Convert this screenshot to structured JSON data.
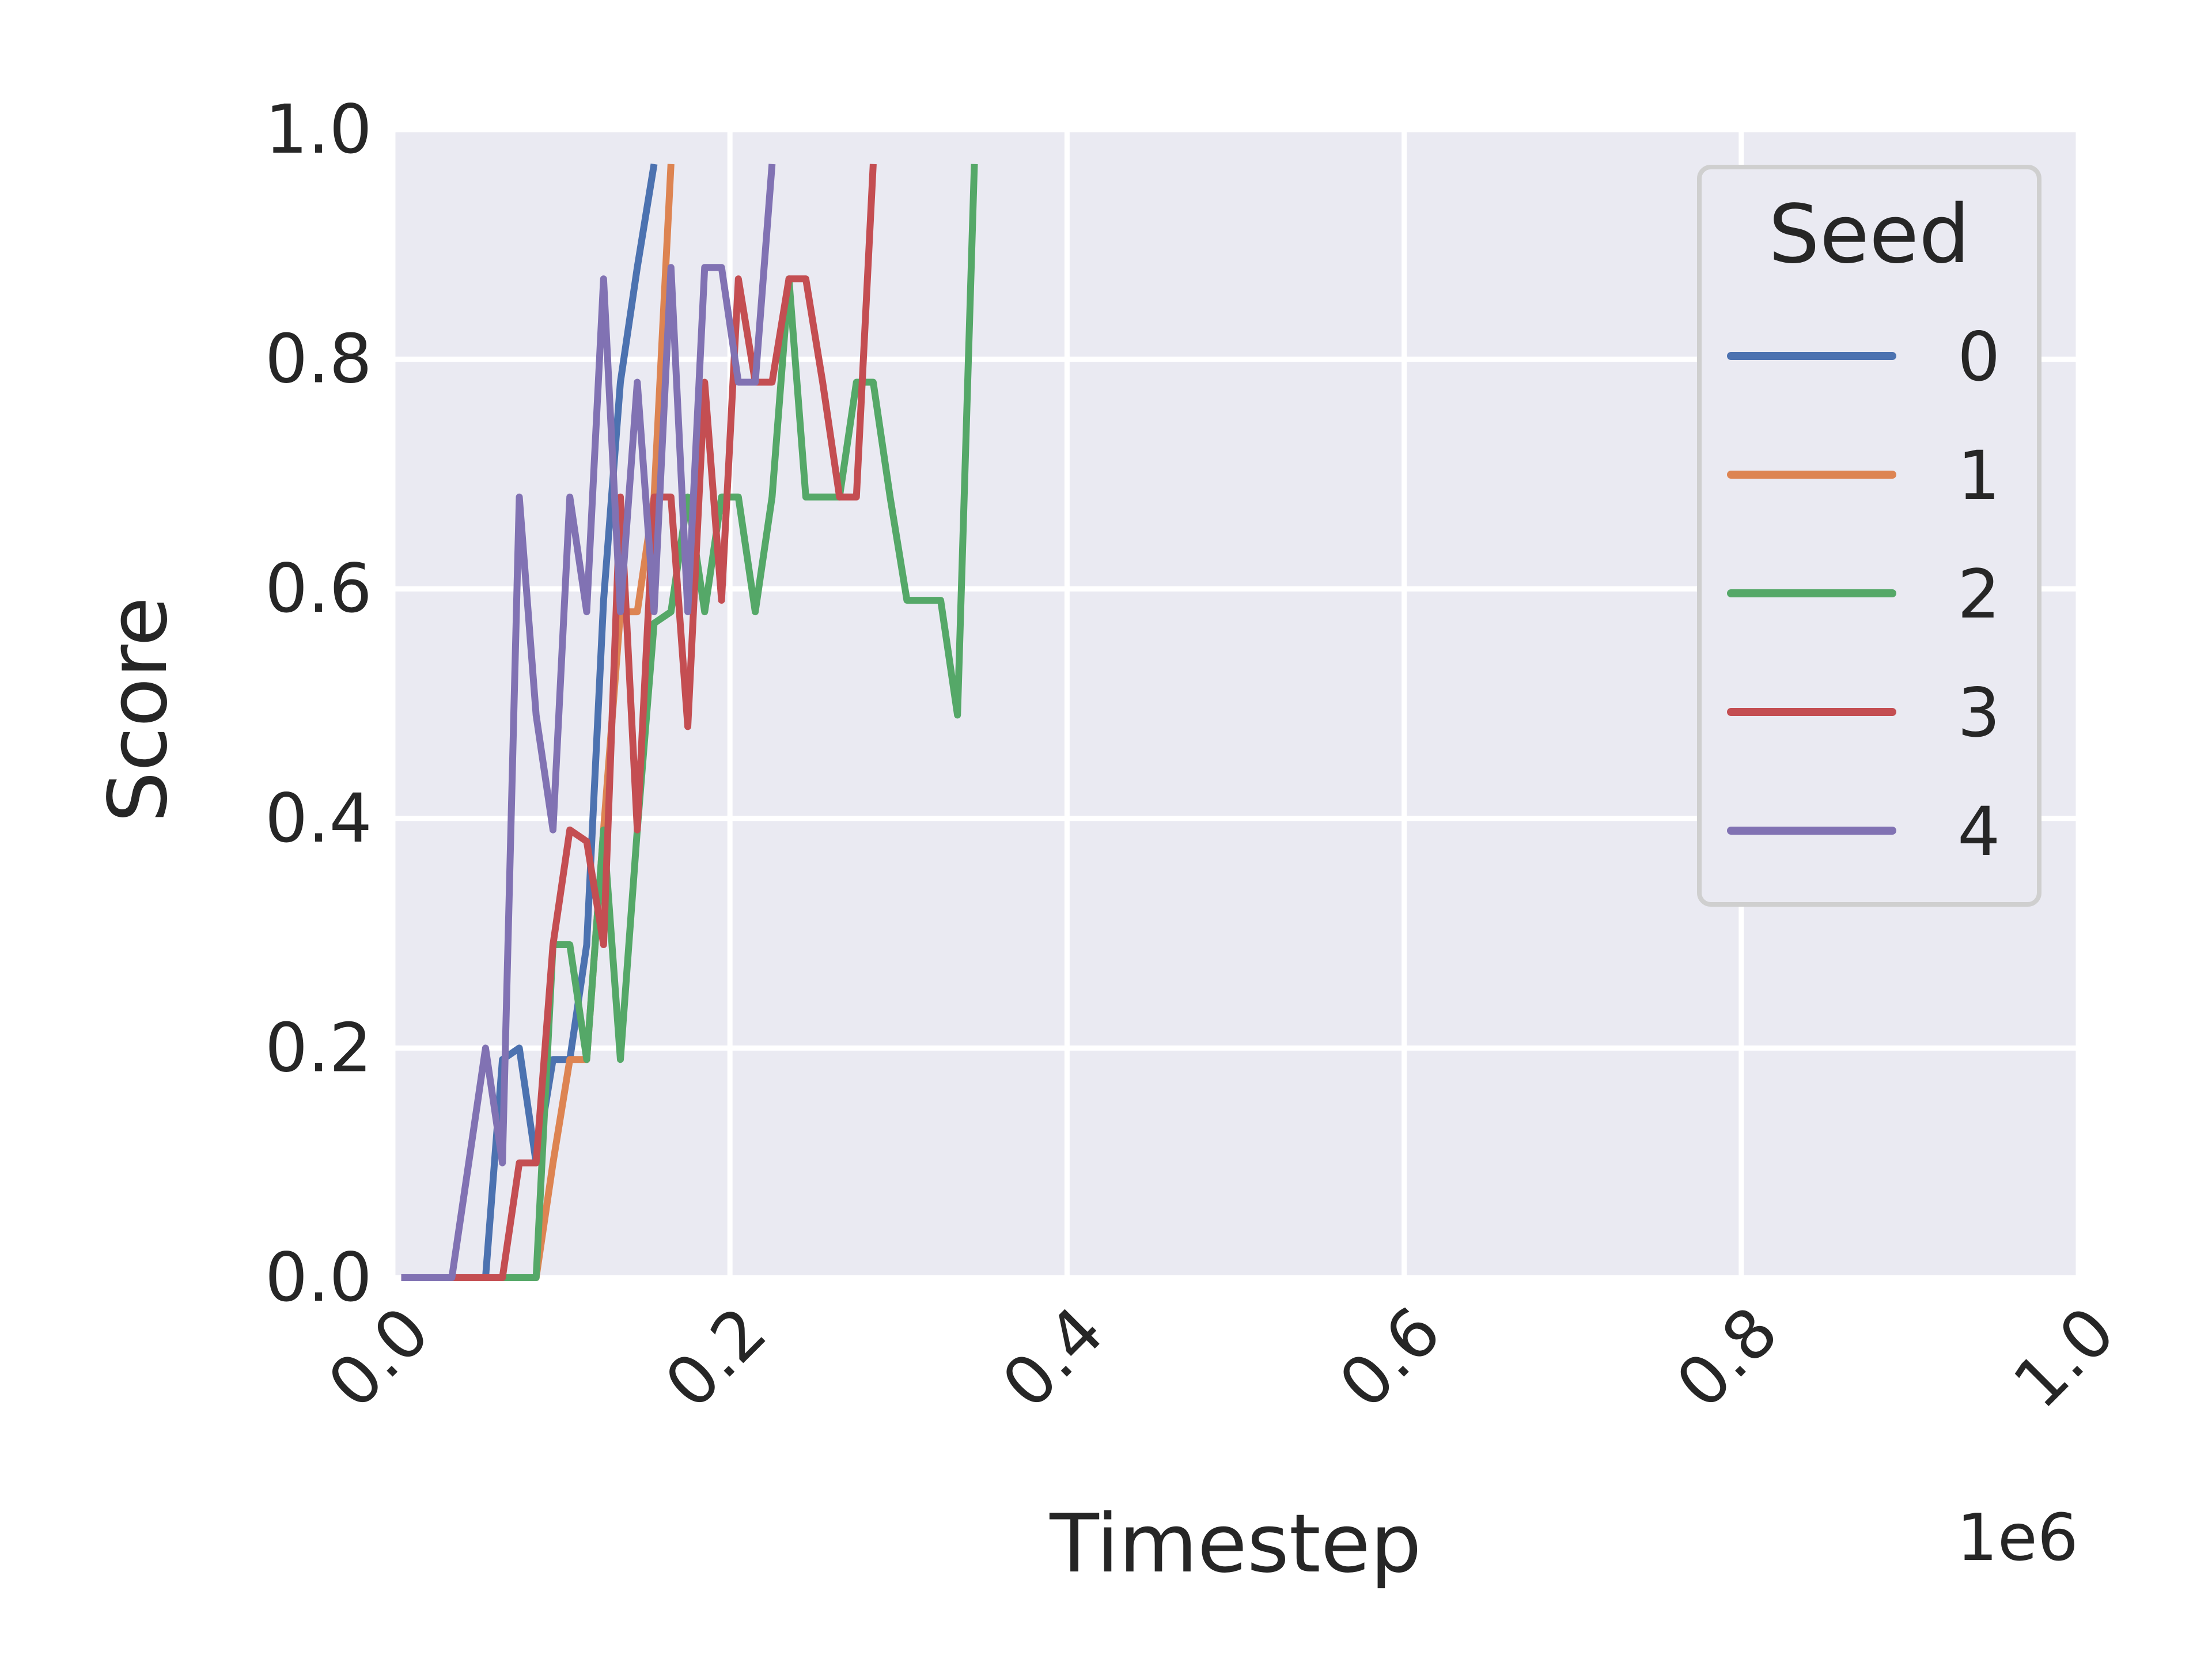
{
  "chart_data": {
    "type": "line",
    "title": "",
    "xlabel": "Timestep",
    "ylabel": "Score",
    "x_offset_text": "1e6",
    "xlim": [
      0,
      1000000
    ],
    "ylim": [
      0,
      1
    ],
    "xticks": [
      "0.0",
      "0.2",
      "0.4",
      "0.6",
      "0.8",
      "1.0"
    ],
    "yticks": [
      "0.0",
      "0.2",
      "0.4",
      "0.6",
      "0.8",
      "1.0"
    ],
    "grid": true,
    "legend": {
      "title": "Seed",
      "position": "upper-right"
    },
    "series": [
      {
        "name": "0",
        "color": "#4c72b0",
        "x": [
          5000,
          15000,
          25000,
          35000,
          45000,
          55000,
          65000,
          75000,
          85000,
          95000,
          105000,
          115000,
          125000,
          135000,
          145000,
          155000
        ],
        "y": [
          0,
          0,
          0,
          0,
          0,
          0,
          0.19,
          0.2,
          0.1,
          0.19,
          0.19,
          0.29,
          0.59,
          0.78,
          0.88,
          0.97
        ]
      },
      {
        "name": "1",
        "color": "#dd8452",
        "x": [
          5000,
          15000,
          25000,
          35000,
          45000,
          55000,
          65000,
          75000,
          85000,
          95000,
          105000,
          115000,
          125000,
          135000,
          145000,
          155000,
          165000
        ],
        "y": [
          0,
          0,
          0,
          0,
          0,
          0,
          0,
          0,
          0,
          0.1,
          0.19,
          0.19,
          0.39,
          0.58,
          0.58,
          0.68,
          0.97
        ]
      },
      {
        "name": "2",
        "color": "#55a868",
        "x": [
          5000,
          15000,
          25000,
          35000,
          45000,
          55000,
          65000,
          75000,
          85000,
          95000,
          105000,
          115000,
          125000,
          135000,
          145000,
          155000,
          165000,
          175000,
          185000,
          195000,
          205000,
          215000,
          225000,
          235000,
          245000,
          255000,
          265000,
          275000,
          285000,
          295000,
          305000,
          315000,
          325000,
          335000,
          345000
        ],
        "y": [
          0,
          0,
          0,
          0,
          0,
          0,
          0,
          0,
          0,
          0.29,
          0.29,
          0.19,
          0.39,
          0.19,
          0.39,
          0.57,
          0.58,
          0.68,
          0.58,
          0.68,
          0.68,
          0.58,
          0.68,
          0.87,
          0.68,
          0.68,
          0.68,
          0.78,
          0.78,
          0.68,
          0.59,
          0.59,
          0.59,
          0.49,
          0.97
        ]
      },
      {
        "name": "3",
        "color": "#c44e52",
        "x": [
          5000,
          15000,
          25000,
          35000,
          45000,
          55000,
          65000,
          75000,
          85000,
          95000,
          105000,
          115000,
          125000,
          135000,
          145000,
          155000,
          165000,
          175000,
          185000,
          195000,
          205000,
          215000,
          225000,
          235000,
          245000,
          255000,
          265000,
          275000,
          285000
        ],
        "y": [
          0,
          0,
          0,
          0,
          0,
          0,
          0,
          0.1,
          0.1,
          0.29,
          0.39,
          0.38,
          0.29,
          0.68,
          0.39,
          0.68,
          0.68,
          0.48,
          0.78,
          0.59,
          0.87,
          0.78,
          0.78,
          0.87,
          0.87,
          0.78,
          0.68,
          0.68,
          0.97
        ]
      },
      {
        "name": "4",
        "color": "#8172b3",
        "x": [
          5000,
          15000,
          25000,
          35000,
          45000,
          55000,
          65000,
          75000,
          85000,
          95000,
          105000,
          115000,
          125000,
          135000,
          145000,
          155000,
          165000,
          175000,
          185000,
          195000,
          205000,
          215000,
          225000
        ],
        "y": [
          0,
          0,
          0,
          0,
          0.1,
          0.2,
          0.1,
          0.68,
          0.49,
          0.39,
          0.68,
          0.58,
          0.87,
          0.58,
          0.78,
          0.58,
          0.88,
          0.58,
          0.88,
          0.88,
          0.78,
          0.78,
          0.97
        ]
      }
    ]
  }
}
